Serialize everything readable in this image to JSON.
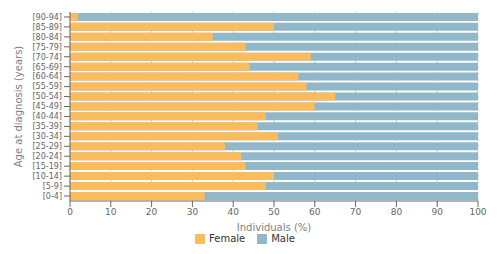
{
  "chart_data": {
    "type": "bar",
    "orientation": "horizontal",
    "categories": [
      "[0-4]",
      "[5-9]",
      "[10-14]",
      "[15-19]",
      "[20-24]",
      "[25-29]",
      "[30-34]",
      "[35-39]",
      "[40-44]",
      "[45-49]",
      "[50-54]",
      "[55-59]",
      "[60-64]",
      "[65-69]",
      "[70-74]",
      "[75-79]",
      "[80-84]",
      "[85-89]",
      "[90-94]"
    ],
    "series": [
      {
        "name": "Female",
        "color": "#FBBC5E",
        "values": [
          33,
          48,
          50,
          43,
          42,
          38,
          51,
          46,
          48,
          60,
          65,
          58,
          56,
          44,
          59,
          43,
          35,
          50,
          2
        ]
      },
      {
        "name": "Male",
        "color": "#90B8C8",
        "values": [
          100,
          100,
          100,
          100,
          100,
          100,
          100,
          100,
          100,
          100,
          100,
          100,
          100,
          100,
          100,
          100,
          100,
          100,
          100
        ]
      }
    ],
    "xlabel": "Individuals (%)",
    "ylabel": "Age at diagnosis (years)",
    "xlim": [
      0,
      100
    ],
    "xticks": [
      0,
      10,
      20,
      30,
      40,
      50,
      60,
      70,
      80,
      90,
      100
    ],
    "grid": true,
    "legend": "bottom"
  }
}
